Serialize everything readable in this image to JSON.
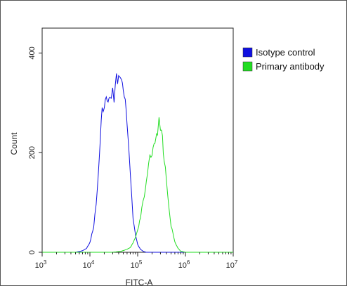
{
  "chart_data": {
    "type": "line",
    "title": "",
    "xlabel": "FITC-A",
    "ylabel": "Count",
    "x_scale": "log",
    "xlim": [
      1000,
      10000000
    ],
    "ylim": [
      0,
      450
    ],
    "x_ticks": [
      {
        "value": 1000,
        "base": "10",
        "exp": "3"
      },
      {
        "value": 10000,
        "base": "10",
        "exp": "4"
      },
      {
        "value": 100000,
        "base": "10",
        "exp": "5"
      },
      {
        "value": 1000000,
        "base": "10",
        "exp": "6"
      },
      {
        "value": 10000000,
        "base": "10",
        "exp": "7"
      }
    ],
    "y_ticks": [
      {
        "value": 0,
        "label": "0"
      },
      {
        "value": 200,
        "label": "200"
      },
      {
        "value": 400,
        "label": "400"
      }
    ],
    "grid": false,
    "legend_position": "right",
    "series": [
      {
        "name": "Isotype control",
        "color": "#1010e0",
        "x": [
          1000,
          5000,
          7000,
          8500,
          10000,
          12000,
          13500,
          15000,
          16500,
          18000,
          20000,
          22000,
          24000,
          26000,
          28000,
          30000,
          32000,
          34000,
          36000,
          38000,
          40000,
          43000,
          46000,
          50000,
          55000,
          60000,
          65000,
          70000,
          75000,
          80000,
          90000,
          100000,
          115000,
          130000,
          150000,
          200000,
          10000000
        ],
        "y": [
          0,
          0,
          3,
          8,
          20,
          50,
          95,
          160,
          230,
          280,
          300,
          310,
          295,
          320,
          305,
          330,
          300,
          340,
          355,
          335,
          365,
          340,
          350,
          330,
          300,
          260,
          210,
          160,
          110,
          70,
          35,
          15,
          6,
          2,
          0,
          0,
          0
        ]
      },
      {
        "name": "Primary antibody",
        "color": "#22dd22",
        "x": [
          1000,
          30000,
          45000,
          60000,
          70000,
          80000,
          90000,
          100000,
          115000,
          130000,
          145000,
          160000,
          180000,
          200000,
          220000,
          240000,
          260000,
          280000,
          300000,
          330000,
          360000,
          400000,
          450000,
          500000,
          600000,
          700000,
          800000,
          1000000,
          10000000
        ],
        "y": [
          0,
          0,
          2,
          6,
          10,
          18,
          30,
          45,
          70,
          100,
          130,
          160,
          185,
          205,
          215,
          225,
          240,
          270,
          245,
          230,
          190,
          140,
          90,
          55,
          20,
          8,
          2,
          0,
          0
        ]
      }
    ]
  }
}
